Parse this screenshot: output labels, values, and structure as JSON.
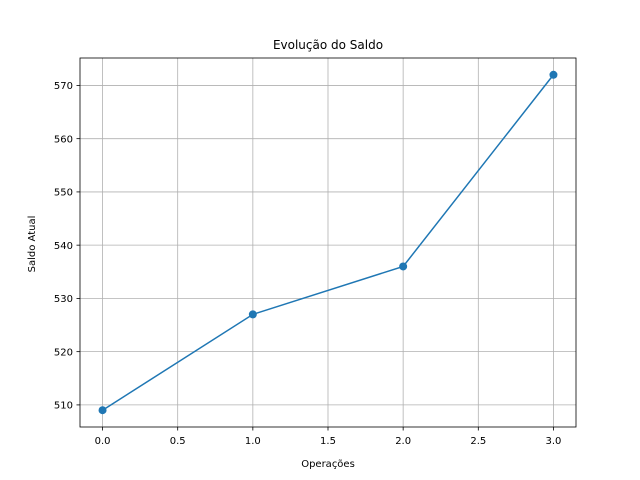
{
  "chart_data": {
    "type": "line",
    "title": "Evolução do Saldo",
    "xlabel": "Operações",
    "ylabel": "Saldo Atual",
    "x": [
      0,
      1,
      2,
      3
    ],
    "series": [
      {
        "values": [
          509,
          527,
          536,
          572
        ],
        "color": "#1f77b4",
        "marker": "circle"
      }
    ],
    "xlim": [
      -0.15,
      3.15
    ],
    "ylim": [
      505.85,
      575.15
    ],
    "xticks": [
      0.0,
      0.5,
      1.0,
      1.5,
      2.0,
      2.5,
      3.0
    ],
    "xtick_labels": [
      "0.0",
      "0.5",
      "1.0",
      "1.5",
      "2.0",
      "2.5",
      "3.0"
    ],
    "yticks": [
      510,
      520,
      530,
      540,
      550,
      560,
      570
    ],
    "ytick_labels": [
      "510",
      "520",
      "530",
      "540",
      "550",
      "560",
      "570"
    ],
    "grid": true,
    "legend": "none"
  }
}
